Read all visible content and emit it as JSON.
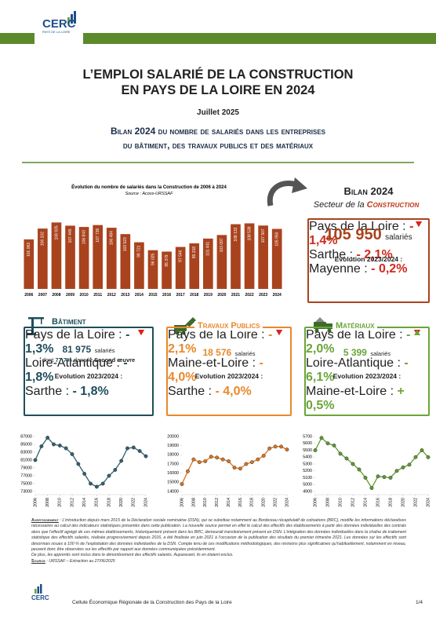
{
  "header": {
    "logo": "CERC",
    "logo_sub": "PAYS DE LA LOIRE",
    "title_lines": [
      "L’EMPLOI SALARIÉ DE LA CONSTRUCTION",
      "EN PAYS DE LA LOIRE EN 2024"
    ],
    "date": "Juillet 2025",
    "subtitle_lines": [
      "Bilan 2024 du nombre de salariés dans les entreprises",
      "du bâtiment, des travaux publics et des matériaux"
    ]
  },
  "bilan": {
    "title": "Bilan 2024",
    "subtitle_prefix": "Secteur de la ",
    "subtitle_emph": "Construction",
    "total": "105 950",
    "unit": "salariés",
    "evolution_title": "Evolution 2023/2024 :",
    "rows": [
      {
        "label": "Pays de la Loire :",
        "value": "- 1,4%",
        "trend": "down"
      },
      {
        "label": "Sarthe :",
        "value": "- 2,1%",
        "trend": "down"
      },
      {
        "label": "Mayenne :",
        "value": "- 0,2%",
        "trend": "down"
      }
    ]
  },
  "sectors": [
    {
      "name": "Bâtiment",
      "color": "#1f4e5a",
      "total": "81 975",
      "unit": "salariés",
      "note_prefix": "dont ",
      "note_value": "77,7%",
      "note_mid": " dans le ",
      "note_emph": "Second œuvre",
      "evolution_title": "Evolution 2023/2024 :",
      "rows": [
        {
          "label": "Pays de la Loire :",
          "value": "- 1,3%",
          "trend": "down"
        },
        {
          "label": "Loire-Atlantique :",
          "value": "- 1,8%",
          "trend": "down"
        },
        {
          "label": "Sarthe :",
          "value": "- 1,8%",
          "trend": "down"
        }
      ]
    },
    {
      "name": "Travaux Publics",
      "color": "#e8892c",
      "total": "18 576",
      "unit": "salariés",
      "evolution_title": "Evolution 2023/2024 :",
      "rows": [
        {
          "label": "Pays de la Loire :",
          "value": "- 2,1%",
          "trend": "down"
        },
        {
          "label": "Maine-et-Loire :",
          "value": "- 4,0%",
          "trend": "down"
        },
        {
          "label": "Sarthe :",
          "value": "- 4,0%",
          "trend": "down"
        }
      ]
    },
    {
      "name": "Matériaux",
      "color": "#6aa538",
      "total": "5 399",
      "unit": "salariés",
      "evolution_title": "Evolution 2023/2024 :",
      "rows": [
        {
          "label": "Pays de la Loire :",
          "value": "- 2,0%",
          "trend": "down"
        },
        {
          "label": "Loire-Atlantique :",
          "value": "- 6,1%",
          "trend": "down"
        },
        {
          "label": "Maine-et-Loire :",
          "value": "+ 0,5%",
          "trend": "up"
        }
      ]
    }
  ],
  "chart_data": [
    {
      "type": "bar",
      "title": "Évolution du nombre de salariés dans la Construction de 2006 à 2024",
      "source": "Source : Acoss-URSSAF",
      "categories": [
        "2006",
        "2007",
        "2008",
        "2009",
        "2010",
        "2011",
        "2012",
        "2013",
        "2014",
        "2015",
        "2016",
        "2017",
        "2018",
        "2019",
        "2020",
        "2021",
        "2022",
        "2023",
        "2024"
      ],
      "values": [
        101063,
        106102,
        108935,
        107445,
        106843,
        107736,
        106484,
        103523,
        99721,
        96025,
        95379,
        97546,
        99218,
        101441,
        103097,
        108132,
        108538,
        107507,
        105950
      ],
      "value_labels": [
        "101 063",
        "106 102",
        "108 935",
        "107 445",
        "106 843",
        "107 736",
        "106 484",
        "103 523",
        "99 721",
        "96 025",
        "95 379",
        "97 546",
        "99 218",
        "101 441",
        "103 097",
        "108 132",
        "108 538",
        "107 507",
        "105 950"
      ],
      "color": "#a9431e",
      "ylim": [
        78000,
        112000
      ]
    },
    {
      "type": "line",
      "x": [
        2006,
        2007,
        2008,
        2009,
        2010,
        2011,
        2012,
        2013,
        2014,
        2015,
        2016,
        2017,
        2018,
        2019,
        2020,
        2021,
        2022,
        2023,
        2024
      ],
      "xlim": [
        2006,
        2024
      ],
      "xticks": [
        2006,
        2008,
        2010,
        2012,
        2014,
        2016,
        2018,
        2020,
        2022,
        2024
      ],
      "series": [
        {
          "color": "#2f6170",
          "values": [
            81000,
            84500,
            86700,
            85000,
            84700,
            84000,
            82500,
            80000,
            77500,
            75000,
            74200,
            75000,
            77000,
            78500,
            80800,
            84000,
            84200,
            83300,
            81975
          ]
        }
      ],
      "ylim": [
        73000,
        87000
      ],
      "yticks": [
        73000,
        75000,
        77000,
        79000,
        81000,
        83000,
        85000,
        87000
      ]
    },
    {
      "type": "line",
      "x": [
        2006,
        2007,
        2008,
        2009,
        2010,
        2011,
        2012,
        2013,
        2014,
        2015,
        2016,
        2017,
        2018,
        2019,
        2020,
        2021,
        2022,
        2023,
        2024
      ],
      "xlim": [
        2006,
        2024
      ],
      "xticks": [
        2006,
        2008,
        2010,
        2012,
        2014,
        2016,
        2018,
        2020,
        2022,
        2024
      ],
      "series": [
        {
          "color": "#d9741f",
          "values": [
            14800,
            16200,
            17500,
            17200,
            17300,
            17800,
            17700,
            17500,
            17300,
            16600,
            16500,
            17000,
            17200,
            17500,
            17900,
            18700,
            18900,
            18900,
            18576
          ]
        }
      ],
      "ylim": [
        14000,
        20000
      ],
      "yticks": [
        14000,
        15000,
        16000,
        17000,
        18000,
        19000,
        20000
      ]
    },
    {
      "type": "line",
      "x": [
        2006,
        2007,
        2008,
        2009,
        2010,
        2011,
        2012,
        2013,
        2014,
        2015,
        2016,
        2017,
        2018,
        2019,
        2020,
        2021,
        2022,
        2023,
        2024
      ],
      "xlim": [
        2006,
        2024
      ],
      "xticks": [
        2006,
        2008,
        2010,
        2012,
        2014,
        2016,
        2018,
        2020,
        2022,
        2024
      ],
      "series": [
        {
          "color": "#5f9a30",
          "values": [
            5500,
            5680,
            5600,
            5570,
            5450,
            5380,
            5300,
            5220,
            5100,
            4950,
            5120,
            5110,
            5100,
            5200,
            5250,
            5290,
            5400,
            5500,
            5399
          ]
        }
      ],
      "ylim": [
        4900,
        5700
      ],
      "yticks": [
        4900,
        5000,
        5100,
        5200,
        5300,
        5400,
        5500,
        5600,
        5700
      ]
    }
  ],
  "notice": {
    "label": "Avertissement",
    "text": " : L’introduction depuis mars 2015 de la Déclaration sociale nominative (DSN), qui se substitue notamment au Bordereau récapitulatif de cotisations (BRC), modifie les informations déclaratives nécessaires au calcul des indicateurs statistiques présentés dans cette publication. La nouvelle source permet en effet le calcul des effectifs des établissements à partir des données individuelles des contrats alors que l’effectif agrégé de ces mêmes établissements, historiquement présent dans les BRC, demeurait transitoirement présent en DSN. L’intégration des données individuelles dans la chaîne de traitement statistique des effectifs salariés, réalisée progressivement depuis 2016, a été finalisée en juin 2021 à l’occasion de la publication des résultats du premier trimestre 2021. Les données sur les effectifs sont désormais issues à 100 % de l’exploitation des données individuelles de la DSN. Compte tenu de ces modifications méthodologiques, des révisions plus significatives qu’habituellement, notamment en niveau, peuvent donc être observées sur les effectifs par rapport aux données communiquées précédemment.",
    "text2": "De plus, les apprentis sont inclus dans le dénombrement des effectifs salariés. Auparavant, ils en étaient exclus.",
    "source_label": "Source",
    "source_text": " : URSSAF – Extraction au 27/06/2025"
  },
  "footer": {
    "text": "Cellule Économique Régionale de la Construction des Pays de la Loire",
    "page": "1/4"
  }
}
